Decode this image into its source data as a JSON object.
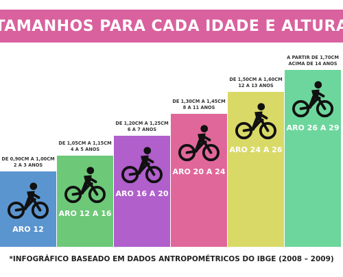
{
  "banner": {
    "title": "TAMANHOS PARA CADA IDADE E ALTURA",
    "color": "#d9619e"
  },
  "columns": [
    {
      "height_line": "DE 0,90CM A 1,00CM",
      "age_line": "2 A 3 ANOS",
      "aro": "ARO 12",
      "color": "#5b95cf",
      "level": 0.38
    },
    {
      "height_line": "DE 1,05CM A 1,15CM",
      "age_line": "4 A 5 ANOS",
      "aro": "ARO 12 A 16",
      "color": "#6dc878",
      "level": 0.46
    },
    {
      "height_line": "DE 1,20CM A 1,25CM",
      "age_line": "6 A 7 ANOS",
      "aro": "ARO 16 A 20",
      "color": "#b05fcb",
      "level": 0.56
    },
    {
      "height_line": "DE 1,30CM A 1,45CM",
      "age_line": "8 A 11 ANOS",
      "aro": "ARO 20 A 24",
      "color": "#e0679a",
      "level": 0.67
    },
    {
      "height_line": "DE 1,50CM A 1,60CM",
      "age_line": "12 A 13 ANOS",
      "aro": "ARO 24 A 26",
      "color": "#d9d967",
      "level": 0.78
    },
    {
      "height_line": "A PARTIR DE 1,70CM",
      "age_line": "ACIMA DE 14 ANOS",
      "aro": "ARO 26 A 29",
      "color": "#6dd69c",
      "level": 0.89
    }
  ],
  "icon": "bicycle-rider-icon",
  "footnote": "*INFOGRÁFICO BASEADO EM DADOS ANTROPOMÉTRICOS DO IBGE (2008 – 2009)"
}
